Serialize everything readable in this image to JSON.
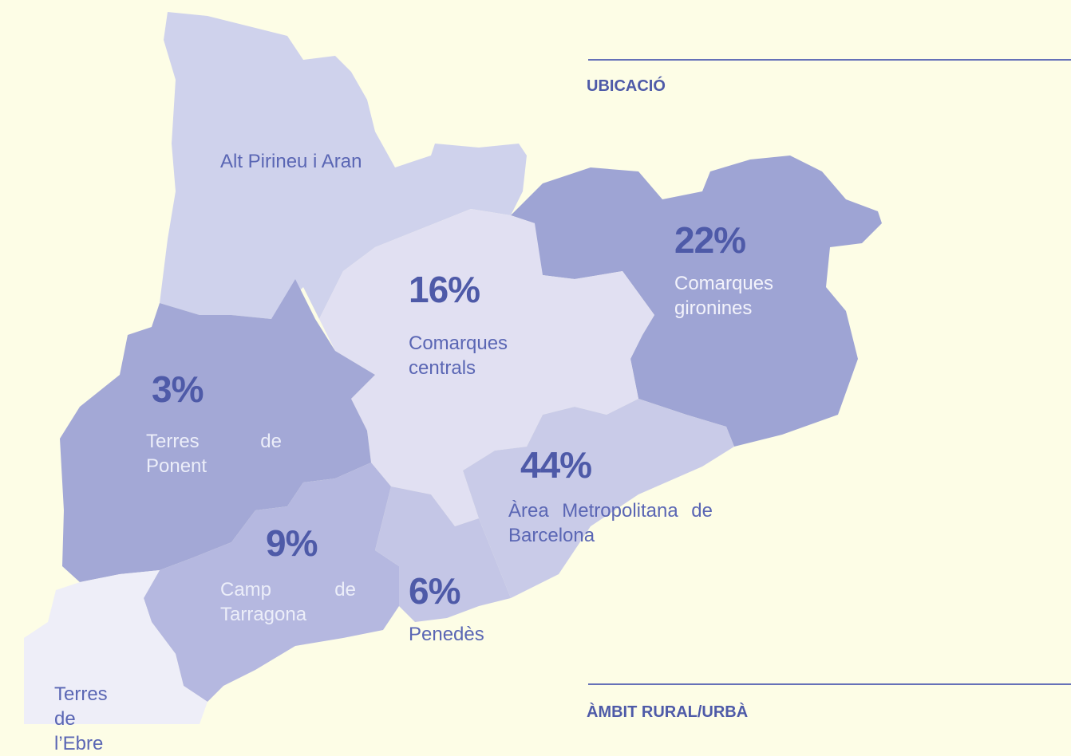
{
  "sections": {
    "location": "UBICACIÓ",
    "rural_urban": "ÀMBIT RURAL/URBÀ"
  },
  "regions": [
    {
      "name": "Alt Pirineu i Aran"
    },
    {
      "name": "Comarques gironines",
      "percent": "22%"
    },
    {
      "name": "Comarques centrals",
      "percent": "16%"
    },
    {
      "name": "Terres de Ponent",
      "percent": "3%"
    },
    {
      "name": "Camp de Tarragona",
      "percent": "9%"
    },
    {
      "name": "Penedès",
      "percent": "6%"
    },
    {
      "name": "Àrea Metropolitana de Barcelona",
      "percent": "44%"
    },
    {
      "name": "Terres de l’Ebre"
    }
  ]
}
